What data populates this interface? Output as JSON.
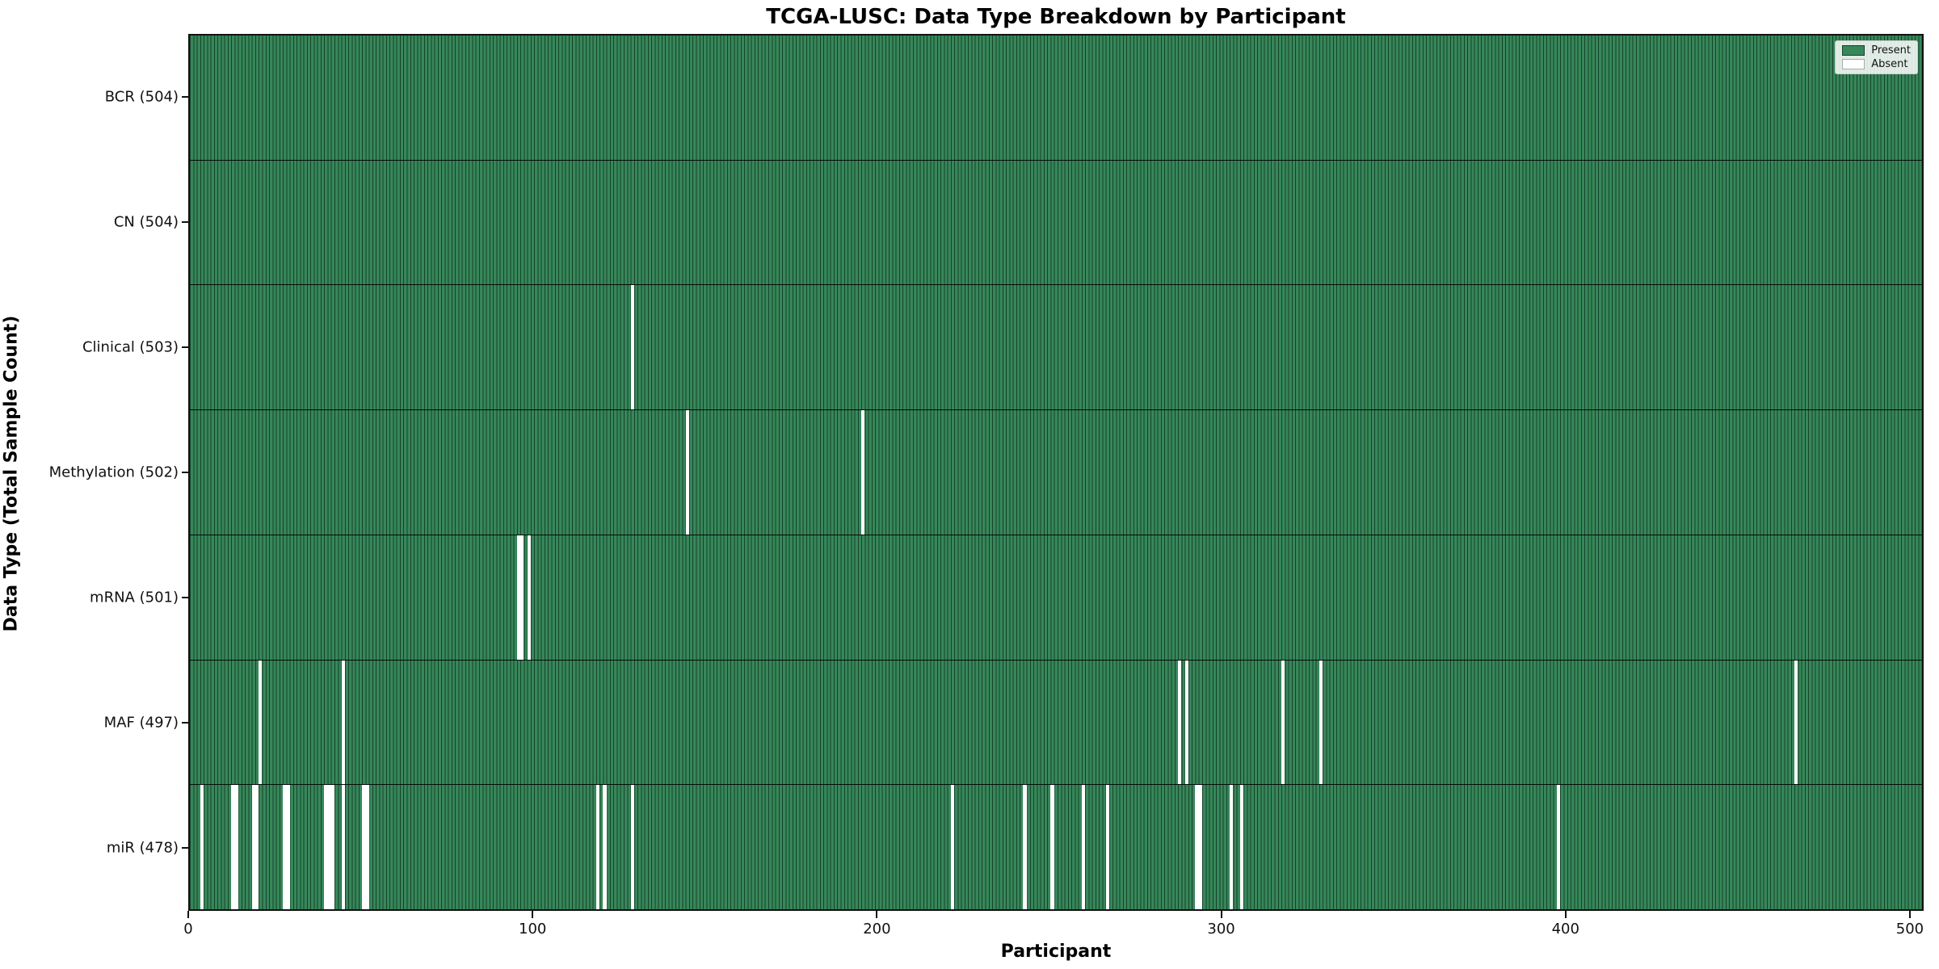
{
  "title": "TCGA-LUSC: Data Type Breakdown by Participant",
  "axes": {
    "xlabel": "Participant",
    "ylabel": "Data Type (Total Sample Count)"
  },
  "legend": {
    "present_label": "Present",
    "absent_label": "Absent"
  },
  "colors": {
    "present_fill": "#37875a",
    "bar_edge": "#15432a",
    "absent_fill": "#ffffff",
    "row_divider": "#000000",
    "spine": "#111111"
  },
  "chart_data": {
    "type": "heatmap",
    "title": "TCGA-LUSC: Data Type Breakdown by Participant",
    "xlabel": "Participant",
    "ylabel": "Data Type (Total Sample Count)",
    "x_ticks": [
      0,
      100,
      200,
      300,
      400,
      500
    ],
    "xlim": [
      0,
      504
    ],
    "total_participants": 504,
    "legend_position": "upper right",
    "grid": false,
    "rows": [
      {
        "label": "BCR (504)",
        "data_type": "BCR",
        "count": 504,
        "missing_participants": []
      },
      {
        "label": "CN (504)",
        "data_type": "CN",
        "count": 504,
        "missing_participants": []
      },
      {
        "label": "Clinical (503)",
        "data_type": "Clinical",
        "count": 503,
        "missing_participants": [
          128
        ]
      },
      {
        "label": "Methylation (502)",
        "data_type": "Methylation",
        "count": 502,
        "missing_participants": [
          144,
          195
        ]
      },
      {
        "label": "mRNA (501)",
        "data_type": "mRNA",
        "count": 501,
        "missing_participants": [
          95,
          96,
          98
        ]
      },
      {
        "label": "MAF (497)",
        "data_type": "MAF",
        "count": 497,
        "missing_participants": [
          20,
          44,
          287,
          289,
          317,
          328,
          466
        ]
      },
      {
        "label": "miR (478)",
        "data_type": "miR",
        "count": 478,
        "missing_participants": [
          3,
          12,
          13,
          18,
          19,
          27,
          28,
          39,
          40,
          41,
          44,
          50,
          51,
          118,
          120,
          128,
          221,
          242,
          250,
          259,
          266,
          292,
          293,
          302,
          305,
          397
        ]
      }
    ]
  }
}
